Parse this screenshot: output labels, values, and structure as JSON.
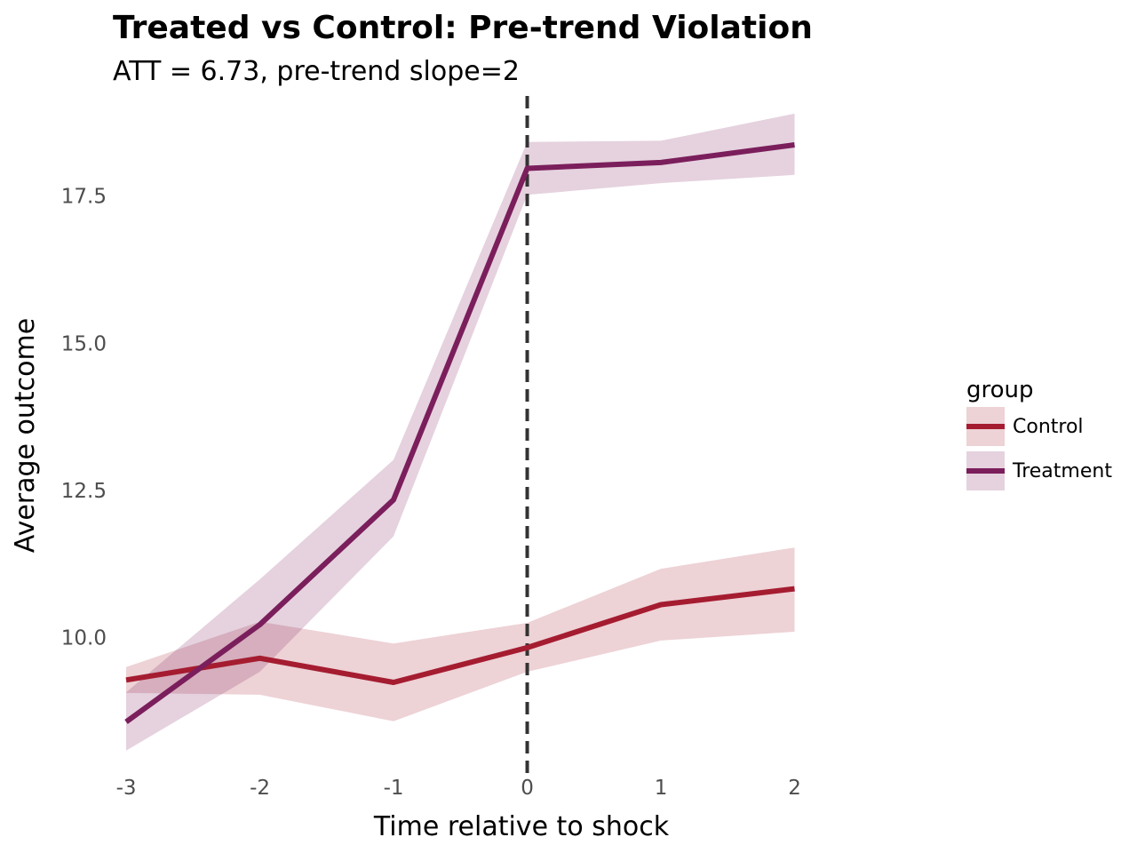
{
  "chart_data": {
    "type": "line",
    "title": "Treated vs Control: Pre-trend Violation",
    "subtitle": "ATT = 6.73, pre-trend slope=2",
    "xlabel": "Time relative to shock",
    "ylabel": "Average outcome",
    "x": [
      -3,
      -2,
      -1,
      0,
      1,
      2
    ],
    "x_tick_labels": [
      "-3",
      "-2",
      "-1",
      "0",
      "1",
      "2"
    ],
    "y_ticks": [
      10.0,
      12.5,
      15.0,
      17.5
    ],
    "y_tick_labels": [
      "10.0",
      "12.5",
      "15.0",
      "17.5"
    ],
    "xlim": [
      -3.1,
      3.0
    ],
    "ylim": [
      7.7,
      19.2
    ],
    "vline_x": 0,
    "grid": false,
    "legend_title": "group",
    "legend_position": "right",
    "series": [
      {
        "name": "Control",
        "color": "#a51c30",
        "band_color": "#a51c30",
        "values": [
          9.28,
          9.65,
          9.24,
          9.83,
          10.56,
          10.83
        ],
        "lower": [
          9.06,
          9.03,
          8.58,
          9.42,
          9.95,
          10.1
        ],
        "upper": [
          9.5,
          10.27,
          9.9,
          10.25,
          11.17,
          11.53
        ]
      },
      {
        "name": "Treatment",
        "color": "#7b1e5c",
        "band_color": "#7b1e5c",
        "values": [
          8.57,
          10.22,
          12.34,
          17.97,
          18.07,
          18.37
        ],
        "lower": [
          8.08,
          9.42,
          11.72,
          17.52,
          17.72,
          17.86
        ],
        "upper": [
          9.07,
          10.99,
          13.02,
          18.42,
          18.44,
          18.9
        ]
      }
    ]
  }
}
